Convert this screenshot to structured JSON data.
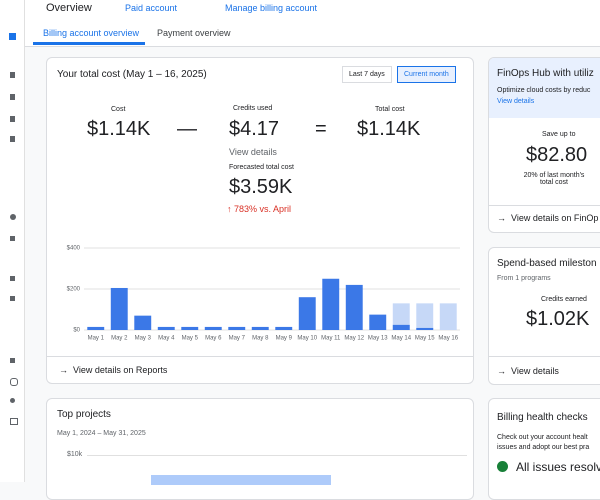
{
  "header": {
    "title": "Overview",
    "account_type": "Paid account",
    "manage": "Manage billing account"
  },
  "tabs": [
    "Billing account overview",
    "Payment overview"
  ],
  "cost_card": {
    "title": "Your total cost (May 1 – 16, 2025)",
    "ranges": [
      "Last 7 days",
      "Current month"
    ],
    "cost_label": "Cost",
    "cost": "$1.14K",
    "minus": "—",
    "credits_label": "Credits used",
    "credits": "$4.17",
    "equals": "=",
    "total_label": "Total cost",
    "total": "$1.14K",
    "view_details": "View details",
    "forecast_label": "Forecasted total cost",
    "forecast": "$3.59K",
    "forecast_change": "783% vs. April",
    "chart": {
      "type": "bar",
      "categories": [
        "May 1",
        "May 2",
        "May 3",
        "May 4",
        "May 5",
        "May 6",
        "May 7",
        "May 8",
        "May 9",
        "May 10",
        "May 11",
        "May 12",
        "May 13",
        "May 14",
        "May 15",
        "May 16"
      ],
      "values": [
        15,
        205,
        70,
        15,
        15,
        15,
        15,
        15,
        15,
        160,
        250,
        220,
        75,
        25,
        10,
        0
      ],
      "color": "#3b78e7",
      "forecast": [
        null,
        null,
        null,
        null,
        null,
        null,
        null,
        null,
        null,
        null,
        null,
        null,
        null,
        130,
        130,
        130
      ],
      "forecast_color": "#c6d8f7",
      "ylim": [
        0,
        400
      ],
      "yticks": [
        {
          "value": 0,
          "label": "$0"
        },
        {
          "value": 200,
          "label": "$200"
        },
        {
          "value": 400,
          "label": "$400"
        }
      ],
      "grid": true
    },
    "reports_link": "View details on Reports"
  },
  "projects_card": {
    "title": "Top projects",
    "range": "May 1, 2024 – May 31, 2025",
    "axis_label": "$10k"
  },
  "finops_card": {
    "title": "FinOps Hub with utiliz",
    "desc": "Optimize cloud costs by reduc",
    "link": "View details",
    "save_label": "Save up to",
    "save": "$82.80",
    "save_note": "20% of last month's total cost",
    "footer_link": "View details on FinOp"
  },
  "milestone_card": {
    "title": "Spend-based mileston",
    "programs": "From 1 programs",
    "credits_label": "Credits earned",
    "credits": "$1.02K",
    "link": "View details"
  },
  "health_card": {
    "title": "Billing health checks",
    "desc1": "Check out your account healt",
    "desc2": "issues and adopt our best pra",
    "status": "All issues resolv"
  }
}
